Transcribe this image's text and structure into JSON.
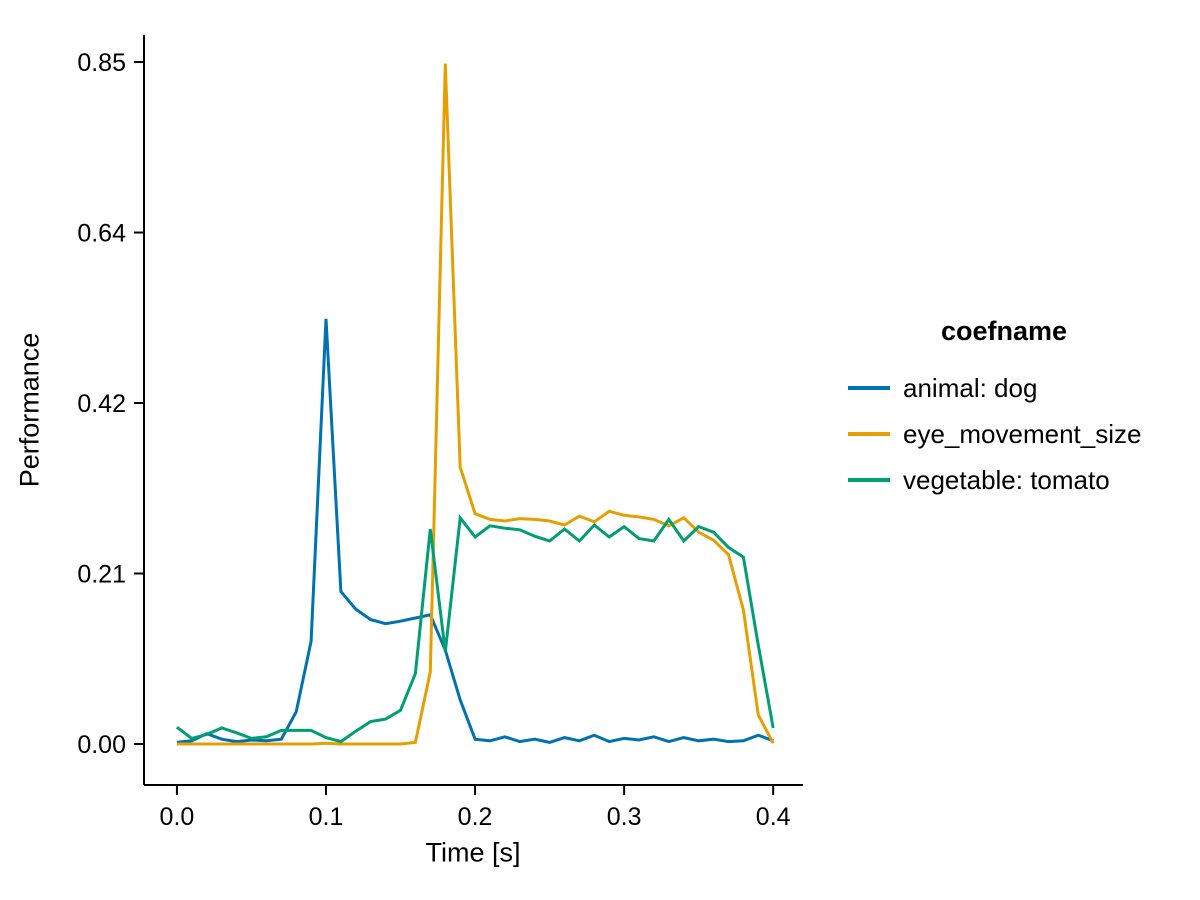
{
  "figure": {
    "background": "#ffffff"
  },
  "chart_data": {
    "type": "line",
    "title": "",
    "xlabel": "Time [s]",
    "ylabel": "Performance",
    "grid": false,
    "legend": {
      "title": "coefname",
      "position": "right"
    },
    "xlim": [
      -0.0221,
      0.42
    ],
    "ylim": [
      -0.0511,
      0.8837
    ],
    "x_ticks": [
      {
        "value": 0.0,
        "label": "0.0"
      },
      {
        "value": 0.1,
        "label": "0.1"
      },
      {
        "value": 0.2,
        "label": "0.2"
      },
      {
        "value": 0.3,
        "label": "0.3"
      },
      {
        "value": 0.4,
        "label": "0.4"
      }
    ],
    "y_ticks": [
      {
        "value": 0.0,
        "label": "0.00"
      },
      {
        "value": 0.2125,
        "label": "0.21"
      },
      {
        "value": 0.425,
        "label": "0.42"
      },
      {
        "value": 0.6375,
        "label": "0.64"
      },
      {
        "value": 0.85,
        "label": "0.85"
      }
    ],
    "x": [
      0.0,
      0.01,
      0.02,
      0.03,
      0.04,
      0.05,
      0.06,
      0.07,
      0.08,
      0.09,
      0.1,
      0.11,
      0.12,
      0.13,
      0.14,
      0.15,
      0.16,
      0.17,
      0.18,
      0.19,
      0.2,
      0.21,
      0.22,
      0.23,
      0.24,
      0.25,
      0.26,
      0.27,
      0.28,
      0.29,
      0.3,
      0.31,
      0.32,
      0.33,
      0.34,
      0.35,
      0.36,
      0.37,
      0.38,
      0.39,
      0.4
    ],
    "series": [
      {
        "name": "animal: dog",
        "color": "#0072B2",
        "values": [
          0.002,
          0.004,
          0.013,
          0.006,
          0.003,
          0.005,
          0.004,
          0.006,
          0.04,
          0.128,
          0.53,
          0.19,
          0.168,
          0.155,
          0.15,
          0.153,
          0.157,
          0.161,
          0.117,
          0.055,
          0.006,
          0.004,
          0.009,
          0.003,
          0.006,
          0.002,
          0.008,
          0.004,
          0.011,
          0.003,
          0.007,
          0.005,
          0.009,
          0.003,
          0.008,
          0.004,
          0.006,
          0.003,
          0.004,
          0.011,
          0.004
        ]
      },
      {
        "name": "eye_movement_size",
        "color": "#E69F00",
        "values": [
          0.0,
          0.0,
          0.0,
          0.0,
          0.0,
          0.0,
          0.0,
          0.0,
          0.0,
          0.0,
          0.001,
          0.0,
          0.0,
          0.0,
          0.0,
          0.0,
          0.002,
          0.09,
          0.848,
          0.345,
          0.287,
          0.28,
          0.278,
          0.281,
          0.28,
          0.278,
          0.273,
          0.284,
          0.277,
          0.29,
          0.285,
          0.283,
          0.28,
          0.272,
          0.282,
          0.264,
          0.254,
          0.236,
          0.167,
          0.036,
          0.001
        ]
      },
      {
        "name": "vegetable: tomato",
        "color": "#009E73",
        "values": [
          0.021,
          0.007,
          0.012,
          0.02,
          0.014,
          0.007,
          0.009,
          0.017,
          0.017,
          0.017,
          0.008,
          0.003,
          0.016,
          0.028,
          0.031,
          0.042,
          0.088,
          0.268,
          0.115,
          0.282,
          0.258,
          0.272,
          0.269,
          0.267,
          0.259,
          0.253,
          0.268,
          0.253,
          0.273,
          0.258,
          0.271,
          0.256,
          0.253,
          0.28,
          0.253,
          0.271,
          0.264,
          0.245,
          0.233,
          0.123,
          0.02
        ]
      }
    ]
  }
}
